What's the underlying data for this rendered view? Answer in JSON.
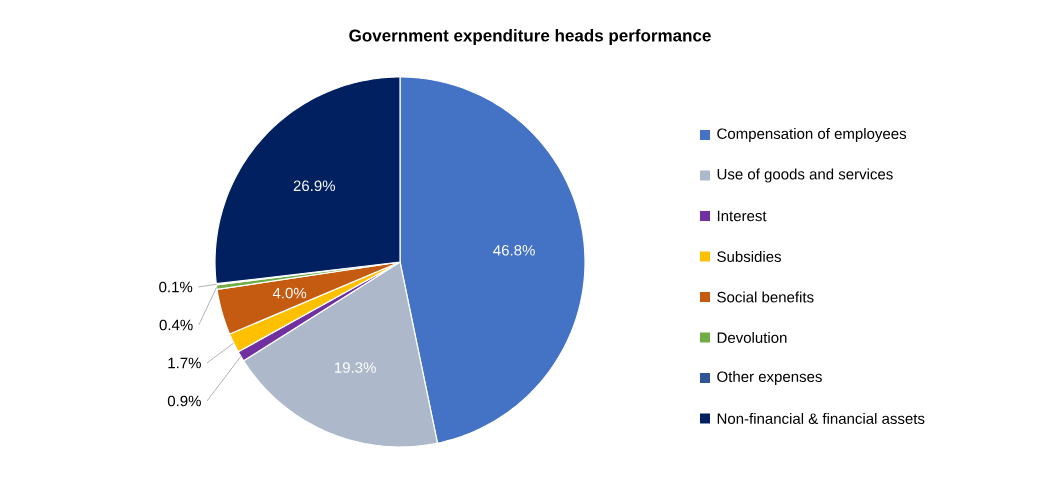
{
  "chart_data": {
    "type": "pie",
    "title": "Government expenditure heads performance",
    "categories": [
      "Compensation of employees",
      "Use of goods and services",
      "Interest",
      "Subsidies",
      "Social benefits",
      "Devolution",
      "Other expenses",
      "Non-financial & financial assets"
    ],
    "values": [
      46.8,
      19.3,
      0.9,
      1.7,
      4.0,
      0.4,
      0.1,
      26.9
    ],
    "value_labels": [
      "46.8%",
      "19.3%",
      "0.9%",
      "1.7%",
      "4.0%",
      "0.4%",
      "0.1%",
      "26.9%"
    ],
    "colors": [
      "#4472c4",
      "#adb9ca",
      "#7030a0",
      "#ffc000",
      "#c55a11",
      "#70ad47",
      "#2f5597",
      "#002060"
    ],
    "legend": "right"
  }
}
